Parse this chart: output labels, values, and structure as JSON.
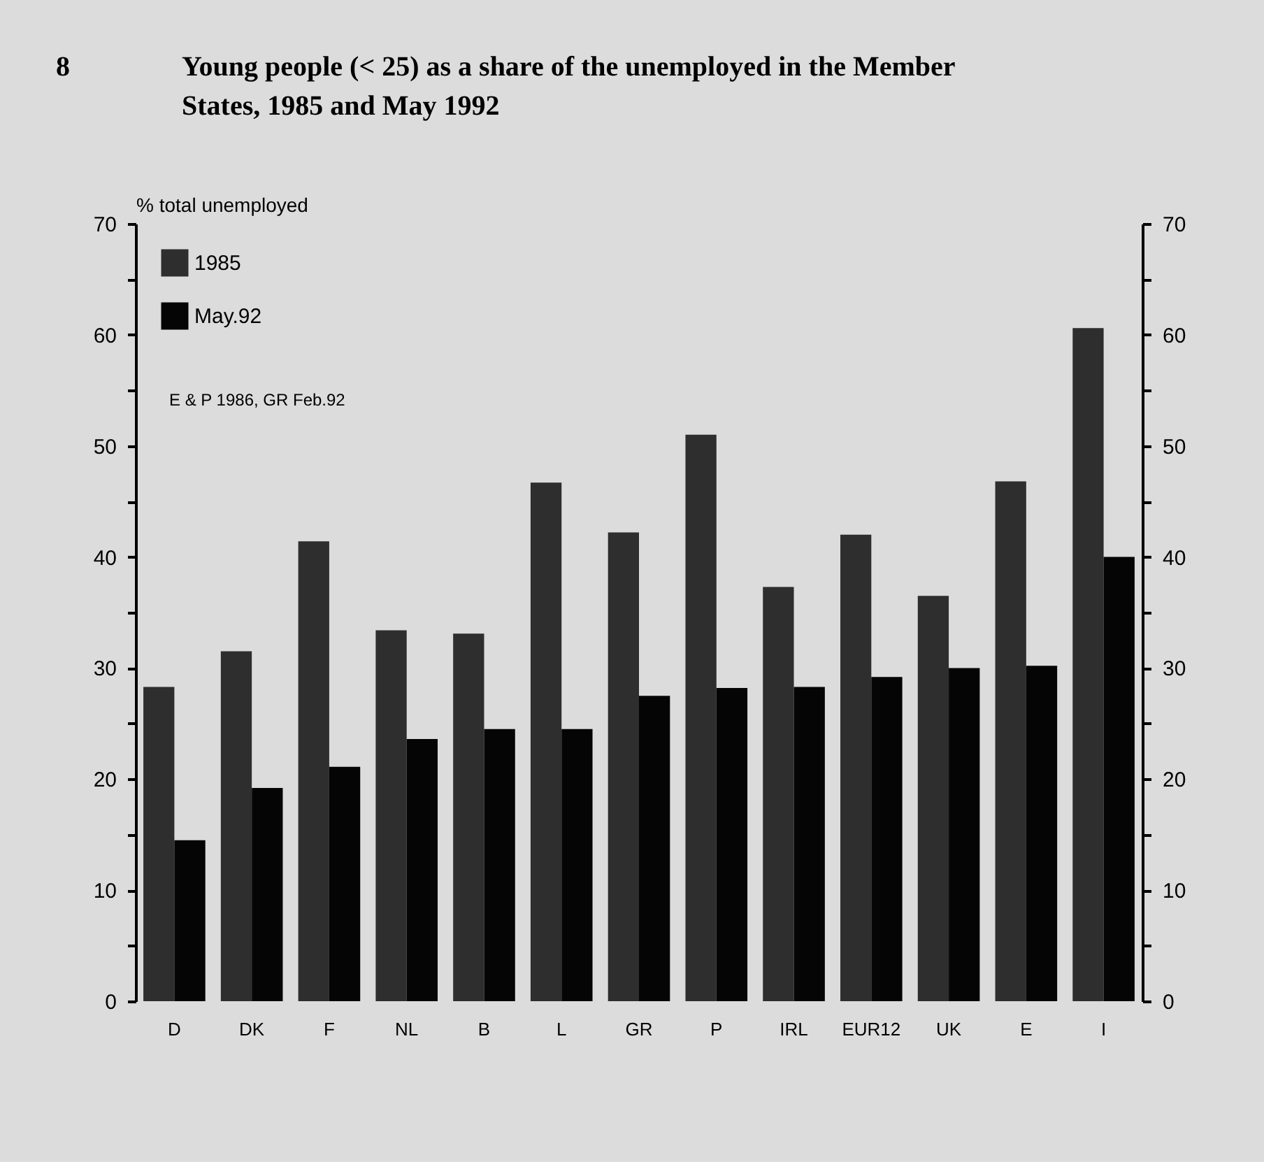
{
  "chart_data": {
    "type": "bar",
    "title": "Young people (< 25) as a share of the unemployed in the Member States, 1985 and May 1992",
    "ylabel": "% total unemployed",
    "annotations": [
      "8",
      "E & P 1986,  GR Feb.92"
    ],
    "categories": [
      "D",
      "DK",
      "F",
      "NL",
      "B",
      "L",
      "GR",
      "P",
      "IRL",
      "EUR12",
      "UK",
      "E",
      "I"
    ],
    "series": [
      {
        "name": "1985",
        "color": "#2e2e2e",
        "values": [
          28.3,
          31.5,
          41.4,
          33.4,
          33.1,
          46.7,
          42.2,
          51,
          37.3,
          42,
          36.5,
          46.8,
          60.6
        ]
      },
      {
        "name": "May.92",
        "color": "#050505",
        "values": [
          14.5,
          19.2,
          21.1,
          23.6,
          24.5,
          24.5,
          27.5,
          28.2,
          28.3,
          29.2,
          30,
          30.2,
          40
        ]
      }
    ],
    "ylim": [
      0,
      70
    ],
    "yticks": [
      0,
      {
        "value": 5,
        "label": null
      },
      10,
      {
        "value": 15,
        "label": null
      },
      20,
      {
        "value": 25,
        "label": null
      },
      30,
      {
        "value": 35,
        "label": null
      },
      40,
      {
        "value": 45,
        "label": null
      },
      50,
      {
        "value": 55,
        "label": null
      },
      60,
      {
        "value": 65,
        "label": null
      },
      70
    ],
    "y2lim": [
      0,
      70
    ],
    "y2ticks": [
      0,
      {
        "value": 5,
        "label": null
      },
      10,
      {
        "value": 15,
        "label": null
      },
      20,
      {
        "value": 25,
        "label": null
      },
      30,
      {
        "value": 35,
        "label": null
      },
      40,
      {
        "value": 45,
        "label": null
      },
      50,
      {
        "value": 55,
        "label": null
      },
      60,
      {
        "value": 65,
        "label": null
      },
      70
    ],
    "legend": "top left"
  }
}
